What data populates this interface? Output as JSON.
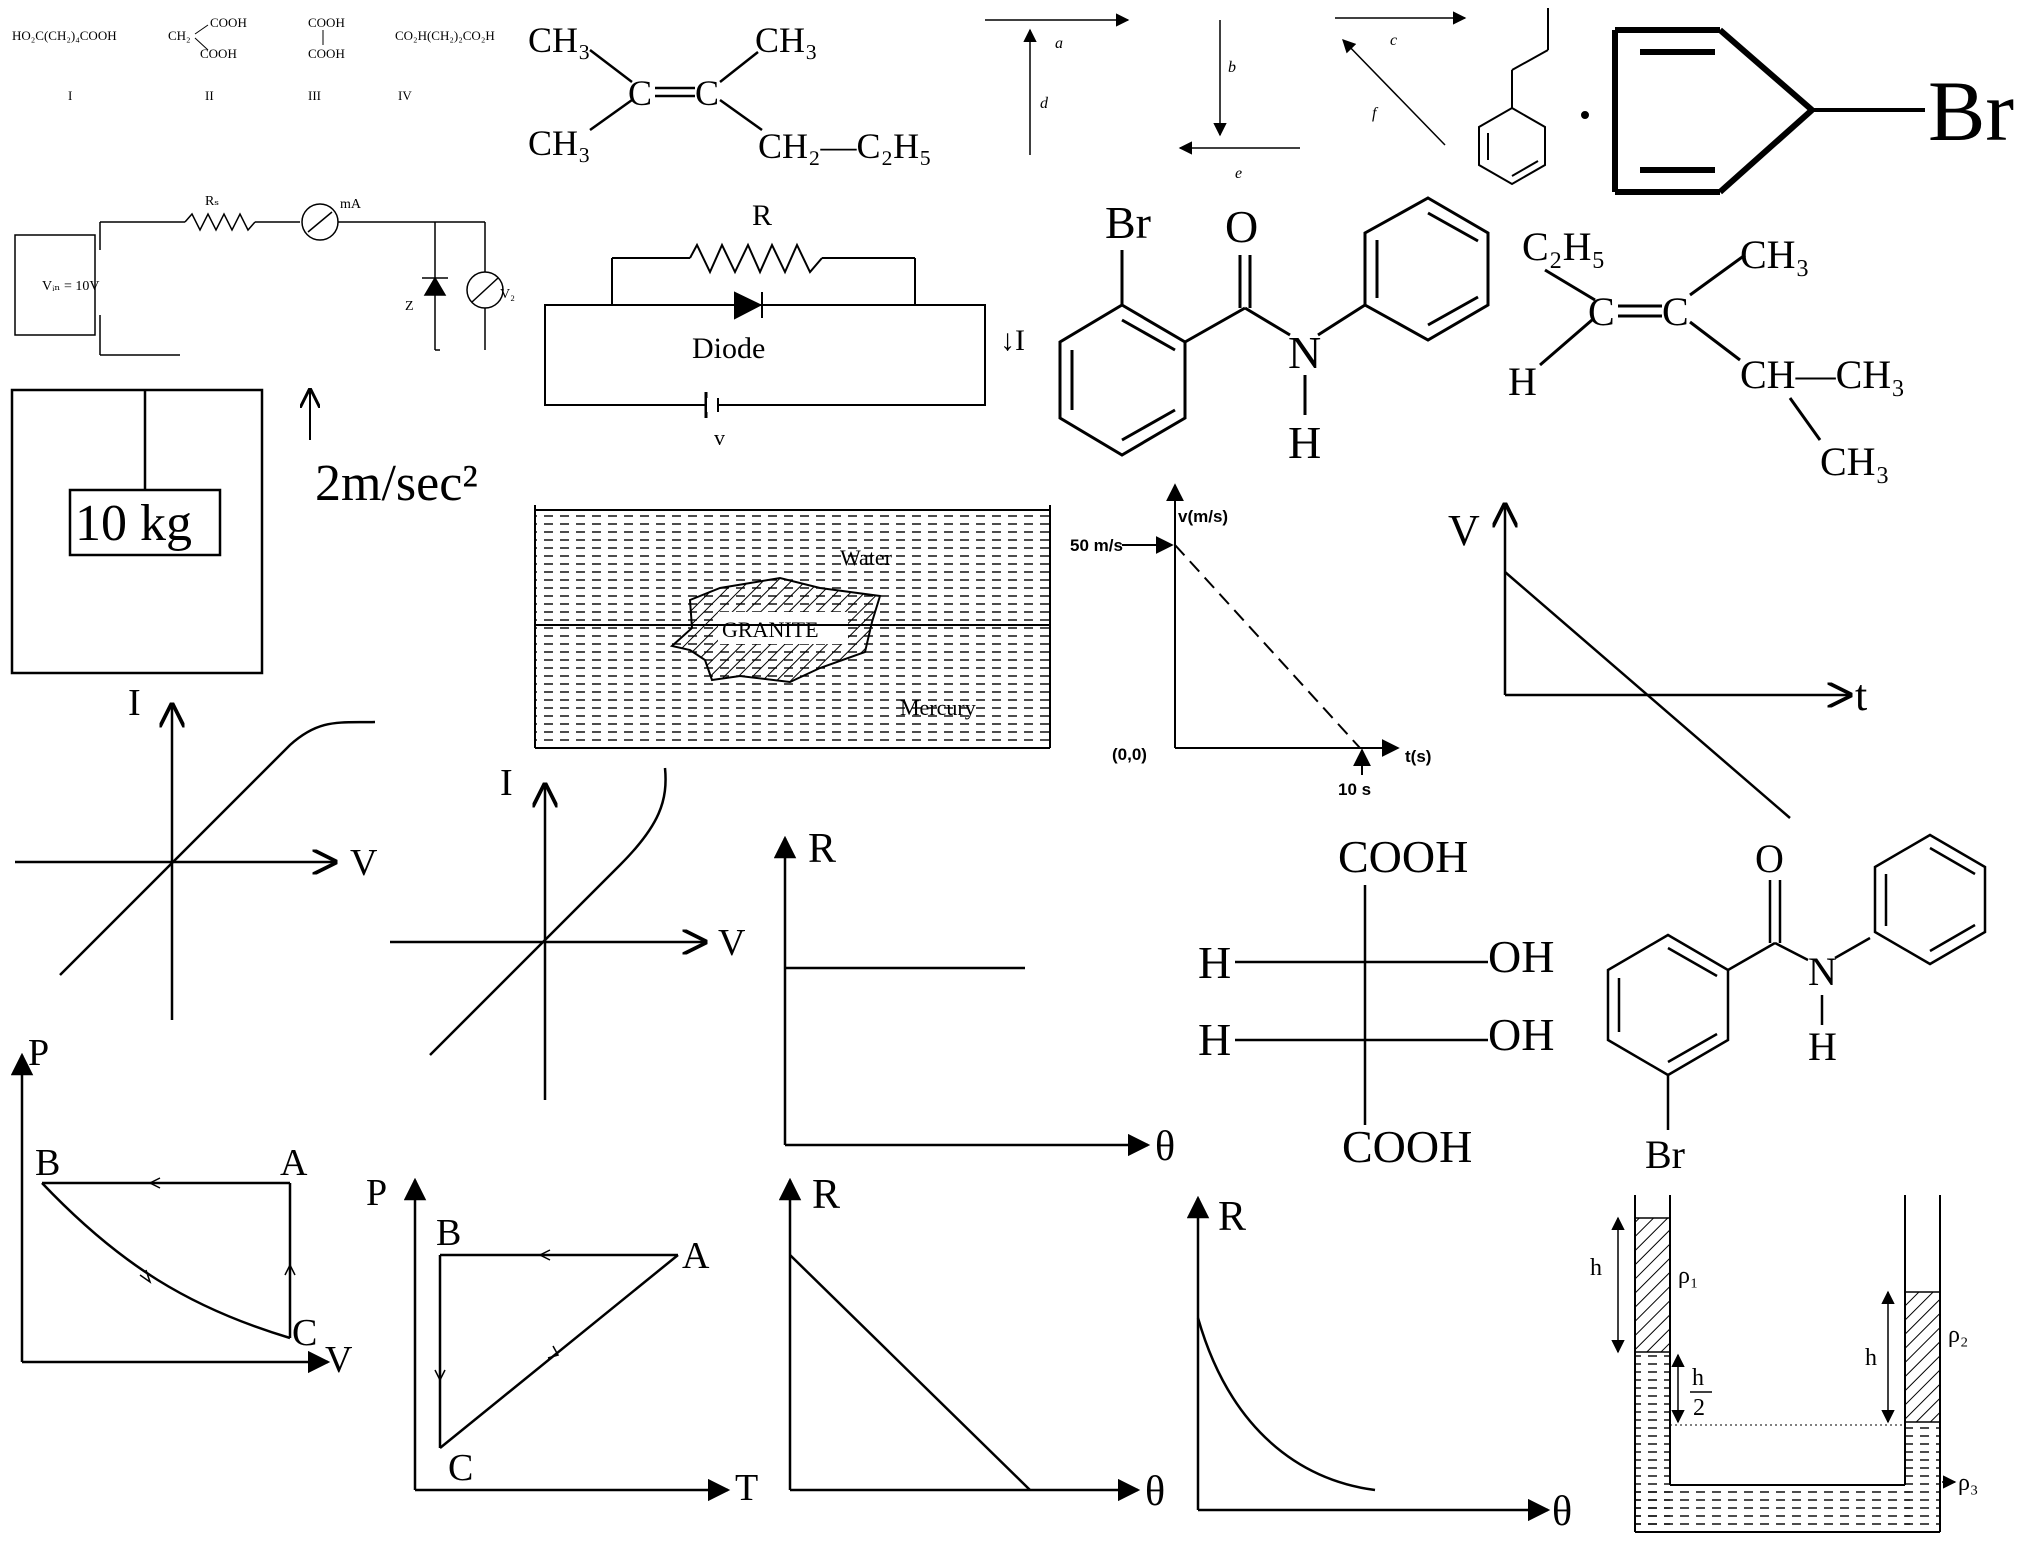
{
  "acids": {
    "i": "HO₂C(CH₂)₄COOH",
    "ii_left": "CH₂",
    "ii_top": "COOH",
    "ii_bottom": "COOH",
    "iii_top": "COOH",
    "iii_bottom": "COOH",
    "iv": "CO₂H(CH₂)₂CO₂H",
    "labels": [
      "I",
      "II",
      "III",
      "IV"
    ]
  },
  "alkene1": {
    "ch3_tl": "CH₃",
    "ch3_tr": "CH₃",
    "ch3_bl": "CH₃",
    "c_left": "C",
    "c_right": "C",
    "ch2c2h5": "CH₂—C₂H₅"
  },
  "vectors": {
    "a": "a",
    "b": "b",
    "c": "c",
    "d": "d",
    "e": "e",
    "f": "f"
  },
  "bromo_ring": {
    "br": "Br"
  },
  "zener_circuit": {
    "rs": "Rₛ",
    "meter": "mA",
    "vin": "Vᵢₙ = 10V",
    "z": "Z",
    "vz": "V₂"
  },
  "diode_circuit": {
    "r": "R",
    "diode": "Diode",
    "current": "↓I",
    "voltage": "v"
  },
  "benzanilide_ortho": {
    "br": "Br",
    "o": "O",
    "n": "N",
    "h": "H"
  },
  "alkene2": {
    "c2h5": "C₂H₅",
    "ch3_top": "CH₃",
    "h": "H",
    "c_left": "C",
    "c_right": "C",
    "ch": "CH—CH₃",
    "ch3_bottom": "CH₃"
  },
  "elevator": {
    "mass": "10 kg",
    "accel": "2m/sec²"
  },
  "beaker": {
    "water": "Water",
    "granite": "GRANITE",
    "mercury": "Mercury"
  },
  "vt_graph": {
    "ylabel": "v(m/s)",
    "xlabel": "t(s)",
    "origin": "(0,0)",
    "v0": "50 m/s",
    "t_end": "10 s"
  },
  "vt_graph2": {
    "v": "V",
    "t": "t"
  },
  "iv_graph1": {
    "i": "I",
    "v": "V"
  },
  "iv_graph2": {
    "i": "I",
    "v": "V"
  },
  "r_theta_const": {
    "r": "R",
    "theta": "θ"
  },
  "tartaric": {
    "top": "COOH",
    "h1": "H",
    "oh1": "OH",
    "h2": "H",
    "oh2": "OH",
    "bottom": "COOH"
  },
  "benzanilide_meta": {
    "o": "O",
    "n": "N",
    "h": "H",
    "br": "Br"
  },
  "pv_cycle": {
    "p": "P",
    "v": "V",
    "a": "A",
    "b": "B",
    "c": "C"
  },
  "pt_cycle": {
    "p": "P",
    "t": "T",
    "a": "A",
    "b": "B",
    "c": "C"
  },
  "r_theta_linear": {
    "r": "R",
    "theta": "θ"
  },
  "r_theta_curve": {
    "r": "R",
    "theta": "θ"
  },
  "u_tube": {
    "h_left": "h",
    "rho1": "ρ₁",
    "h_half_num": "h",
    "h_half_den": "2",
    "h_right": "h",
    "rho2": "ρ₂",
    "rho3": "ρ₃"
  }
}
